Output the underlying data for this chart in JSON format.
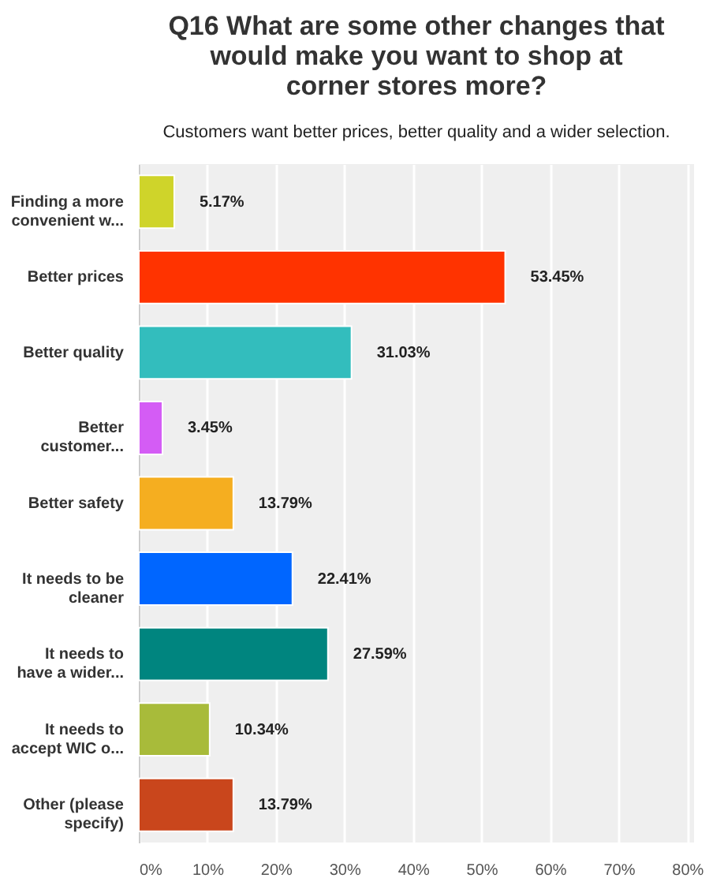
{
  "chart_data": {
    "type": "bar",
    "orientation": "horizontal",
    "title": "Q16 What are some other changes that would make you want to shop at corner stores more?",
    "subtitle": "Customers want better prices, better quality and a wider selection.",
    "categories": [
      "Finding a more convenient w...",
      "Better prices",
      "Better quality",
      "Better customer...",
      "Better safety",
      "It needs to be cleaner",
      "It needs to have a wider...",
      "It needs to accept WIC o...",
      "Other (please specify)"
    ],
    "values": [
      5.17,
      53.45,
      31.03,
      3.45,
      13.79,
      22.41,
      27.59,
      10.34,
      13.79
    ],
    "value_labels": [
      "5.17%",
      "53.45%",
      "31.03%",
      "3.45%",
      "13.79%",
      "22.41%",
      "27.59%",
      "10.34%",
      "13.79%"
    ],
    "colors": [
      "#cfd42a",
      "#ff3300",
      "#33bdbd",
      "#d45cf5",
      "#f5ae20",
      "#0066ff",
      "#00857f",
      "#a8bb3a",
      "#c9461c"
    ],
    "xlim": [
      0,
      81
    ],
    "xticks": [
      {
        "value": 0,
        "label": "0%"
      },
      {
        "value": 10,
        "label": "10%"
      },
      {
        "value": 20,
        "label": "20%"
      },
      {
        "value": 30,
        "label": "30%"
      },
      {
        "value": 40,
        "label": "40%"
      },
      {
        "value": 50,
        "label": "50%"
      },
      {
        "value": 60,
        "label": "60%"
      },
      {
        "value": 70,
        "label": "70%"
      },
      {
        "value": 80,
        "label": "80%"
      }
    ],
    "grid": "x"
  }
}
